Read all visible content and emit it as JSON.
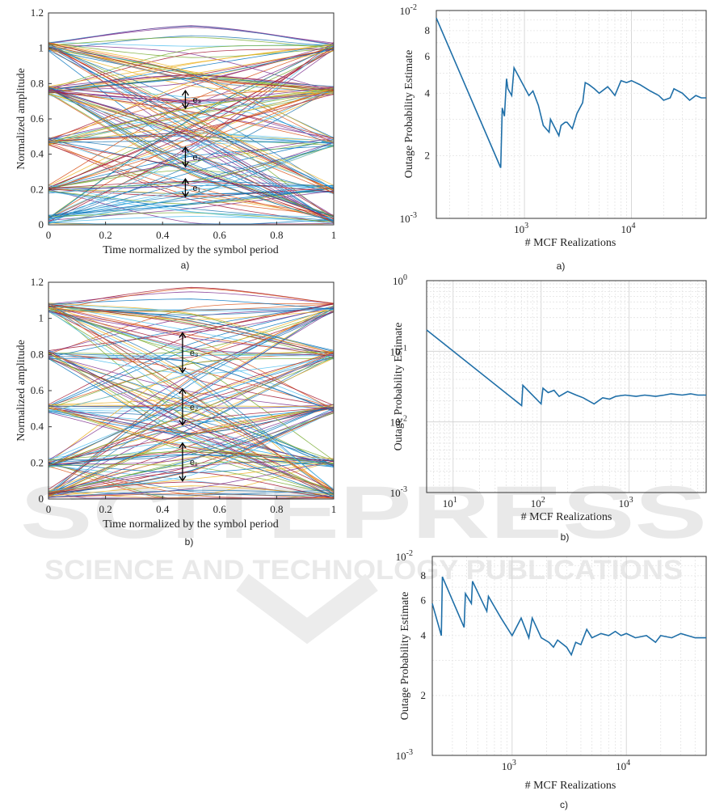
{
  "watermark": {
    "line1": "SCITEPRESS",
    "line2": "SCIENCE AND TECHNOLOGY PUBLICATIONS"
  },
  "chart_data": [
    {
      "id": "eye-a",
      "type": "line",
      "caption": "a)",
      "xlabel": "Time normalized by the symbol period",
      "ylabel": "Normalized amplitude",
      "xlim": [
        0,
        1
      ],
      "ylim": [
        0,
        1.2
      ],
      "xticks": [
        "0",
        "0.2",
        "0.4",
        "0.6",
        "0.8",
        "1"
      ],
      "yticks": [
        "0",
        "0.2",
        "0.4",
        "0.6",
        "0.8",
        "1",
        "1.2"
      ],
      "levels": [
        0.03,
        0.2,
        0.47,
        0.76,
        1.01
      ],
      "spread": 0.22,
      "annotations": [
        {
          "label": "e₁",
          "x": 0.48,
          "y_low": 0.16,
          "y_high": 0.26
        },
        {
          "label": "e₂",
          "x": 0.48,
          "y_low": 0.33,
          "y_high": 0.44
        },
        {
          "label": "e₃",
          "x": 0.48,
          "y_low": 0.66,
          "y_high": 0.76
        }
      ],
      "grid": false
    },
    {
      "id": "eye-b",
      "type": "line",
      "caption": "b)",
      "xlabel": "Time normalized by the symbol period",
      "ylabel": "Normalized amplitude",
      "xlim": [
        0,
        1
      ],
      "ylim": [
        0,
        1.2
      ],
      "xticks": [
        "0",
        "0.2",
        "0.4",
        "0.6",
        "0.8",
        "1"
      ],
      "yticks": [
        "0",
        "0.2",
        "0.4",
        "0.6",
        "0.8",
        "1",
        "1.2"
      ],
      "levels": [
        0.03,
        0.2,
        0.5,
        0.8,
        1.06
      ],
      "spread": 0.28,
      "annotations": [
        {
          "label": "e₁",
          "x": 0.47,
          "y_low": 0.1,
          "y_high": 0.31
        },
        {
          "label": "e₂",
          "x": 0.47,
          "y_low": 0.41,
          "y_high": 0.61
        },
        {
          "label": "e₃",
          "x": 0.47,
          "y_low": 0.7,
          "y_high": 0.92
        }
      ],
      "grid": false
    },
    {
      "id": "outage-a",
      "type": "line",
      "scale": "log-log",
      "caption": "a)",
      "xlabel": "# MCF Realizations",
      "ylabel": "Outage Probability Estimate",
      "xlim": [
        150,
        50000
      ],
      "ylim": [
        0.001,
        0.01
      ],
      "x_tick_labels": [
        {
          "v": 1000,
          "base": "10",
          "exp": "3"
        },
        {
          "v": 10000,
          "base": "10",
          "exp": "4"
        }
      ],
      "y_tick_labels": [
        {
          "v": 0.001,
          "base": "10",
          "exp": "-3"
        },
        {
          "v": 0.002,
          "text": "2"
        },
        {
          "v": 0.004,
          "text": "4"
        },
        {
          "v": 0.006,
          "text": "6"
        },
        {
          "v": 0.008,
          "text": "8"
        },
        {
          "v": 0.01,
          "base": "10",
          "exp": "-2"
        }
      ],
      "color": "#1f6fa8",
      "grid": true,
      "series": [
        {
          "x": [
            150,
            600,
            620,
            650,
            680,
            700,
            760,
            800,
            1100,
            1200,
            1350,
            1500,
            1700,
            1750,
            2100,
            2200,
            2400,
            2500,
            2800,
            3100,
            3500,
            3700,
            4000,
            4500,
            5000,
            6000,
            6500,
            7000,
            8000,
            9000,
            10000,
            12000,
            15000,
            18000,
            20000,
            23000,
            25000,
            30000,
            35000,
            40000,
            45000,
            50000
          ],
          "y": [
            0.0092,
            0.00175,
            0.0034,
            0.0031,
            0.0047,
            0.0042,
            0.0039,
            0.0053,
            0.0039,
            0.0041,
            0.0035,
            0.0028,
            0.0026,
            0.003,
            0.0025,
            0.0028,
            0.0029,
            0.0029,
            0.0027,
            0.0032,
            0.0036,
            0.0045,
            0.0044,
            0.0042,
            0.004,
            0.0043,
            0.0041,
            0.0039,
            0.0046,
            0.0045,
            0.0046,
            0.0044,
            0.0041,
            0.0039,
            0.0037,
            0.0038,
            0.0042,
            0.004,
            0.0037,
            0.0039,
            0.0038,
            0.0038
          ]
        }
      ]
    },
    {
      "id": "outage-b",
      "type": "line",
      "scale": "log-log",
      "caption": "b)",
      "xlabel": "# MCF Realizations",
      "ylabel": "Outage Probability Estimate",
      "xlim": [
        5,
        7500
      ],
      "ylim": [
        0.001,
        1
      ],
      "x_tick_labels": [
        {
          "v": 10,
          "base": "10",
          "exp": "1"
        },
        {
          "v": 100,
          "base": "10",
          "exp": "2"
        },
        {
          "v": 1000,
          "base": "10",
          "exp": "3"
        }
      ],
      "y_tick_labels": [
        {
          "v": 0.001,
          "base": "10",
          "exp": "-3"
        },
        {
          "v": 0.01,
          "base": "10",
          "exp": "-2"
        },
        {
          "v": 0.1,
          "base": "10",
          "exp": "-1"
        },
        {
          "v": 1,
          "base": "10",
          "exp": "0"
        }
      ],
      "color": "#1f6fa8",
      "grid": true,
      "series": [
        {
          "x": [
            5,
            60,
            62,
            100,
            105,
            120,
            140,
            160,
            200,
            250,
            300,
            400,
            500,
            600,
            700,
            900,
            1200,
            1500,
            2000,
            2500,
            3000,
            4000,
            5000,
            6000,
            7500
          ],
          "y": [
            0.2,
            0.017,
            0.033,
            0.018,
            0.03,
            0.026,
            0.028,
            0.023,
            0.027,
            0.024,
            0.022,
            0.018,
            0.022,
            0.021,
            0.023,
            0.024,
            0.023,
            0.024,
            0.023,
            0.024,
            0.025,
            0.024,
            0.025,
            0.024,
            0.024
          ]
        }
      ]
    },
    {
      "id": "outage-c",
      "type": "line",
      "scale": "log-log",
      "caption": "c)",
      "xlabel": "# MCF Realizations",
      "ylabel": "Outage Probability Estimate",
      "xlim": [
        200,
        50000
      ],
      "ylim": [
        0.001,
        0.01
      ],
      "x_tick_labels": [
        {
          "v": 1000,
          "base": "10",
          "exp": "3"
        },
        {
          "v": 10000,
          "base": "10",
          "exp": "4"
        }
      ],
      "y_tick_labels": [
        {
          "v": 0.001,
          "base": "10",
          "exp": "-3"
        },
        {
          "v": 0.002,
          "text": "2"
        },
        {
          "v": 0.004,
          "text": "4"
        },
        {
          "v": 0.006,
          "text": "6"
        },
        {
          "v": 0.008,
          "text": "8"
        },
        {
          "v": 0.01,
          "base": "10",
          "exp": "-2"
        }
      ],
      "color": "#1f6fa8",
      "grid": true,
      "series": [
        {
          "x": [
            200,
            240,
            245,
            380,
            390,
            440,
            450,
            600,
            620,
            800,
            1000,
            1200,
            1400,
            1500,
            1800,
            2100,
            2300,
            2500,
            3000,
            3300,
            3600,
            4000,
            4500,
            5000,
            6000,
            7000,
            8000,
            9000,
            10000,
            12000,
            15000,
            18000,
            20000,
            25000,
            30000,
            40000,
            50000
          ],
          "y": [
            0.0058,
            0.004,
            0.0079,
            0.0044,
            0.0065,
            0.0058,
            0.0075,
            0.0053,
            0.0063,
            0.0049,
            0.004,
            0.0049,
            0.0039,
            0.0049,
            0.0039,
            0.0037,
            0.0035,
            0.0038,
            0.0035,
            0.0032,
            0.0037,
            0.0036,
            0.0043,
            0.0039,
            0.0041,
            0.004,
            0.0042,
            0.004,
            0.0041,
            0.0039,
            0.004,
            0.0037,
            0.004,
            0.0039,
            0.0041,
            0.0039,
            0.0039
          ]
        }
      ]
    }
  ]
}
